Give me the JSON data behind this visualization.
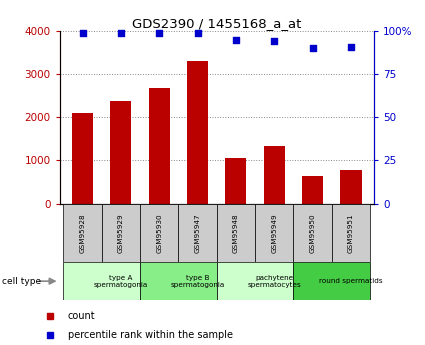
{
  "title": "GDS2390 / 1455168_a_at",
  "samples": [
    "GSM95928",
    "GSM95929",
    "GSM95930",
    "GSM95947",
    "GSM95948",
    "GSM95949",
    "GSM95950",
    "GSM95951"
  ],
  "counts": [
    2100,
    2380,
    2680,
    3300,
    1060,
    1340,
    640,
    780
  ],
  "percentile_ranks": [
    99,
    99,
    99,
    99,
    95,
    94,
    90,
    91
  ],
  "bar_color": "#bb0000",
  "dot_color": "#0000cc",
  "left_yaxis_color": "#bb0000",
  "right_yaxis_color": "#0000cc",
  "ylim_left": [
    0,
    4000
  ],
  "ylim_right": [
    0,
    100
  ],
  "yticks_left": [
    0,
    1000,
    2000,
    3000,
    4000
  ],
  "ytick_labels_left": [
    "0",
    "1000",
    "2000",
    "3000",
    "4000"
  ],
  "yticks_right": [
    0,
    25,
    50,
    75,
    100
  ],
  "ytick_labels_right": [
    "0",
    "25",
    "50",
    "75",
    "100%"
  ],
  "cell_type_groups": [
    {
      "label": "type A\nspermatogonia",
      "start": 0,
      "end": 2,
      "color": "#ccffcc"
    },
    {
      "label": "type B\nspermatogonia",
      "start": 2,
      "end": 4,
      "color": "#88ee88"
    },
    {
      "label": "pachytene\nspermatocytes",
      "start": 4,
      "end": 6,
      "color": "#ccffcc"
    },
    {
      "label": "round spermatids",
      "start": 6,
      "end": 8,
      "color": "#44cc44"
    }
  ],
  "cell_type_label": "cell type",
  "legend_count_label": "count",
  "legend_percentile_label": "percentile rank within the sample",
  "grid_color": "#888888",
  "sample_bg_color": "#cccccc"
}
